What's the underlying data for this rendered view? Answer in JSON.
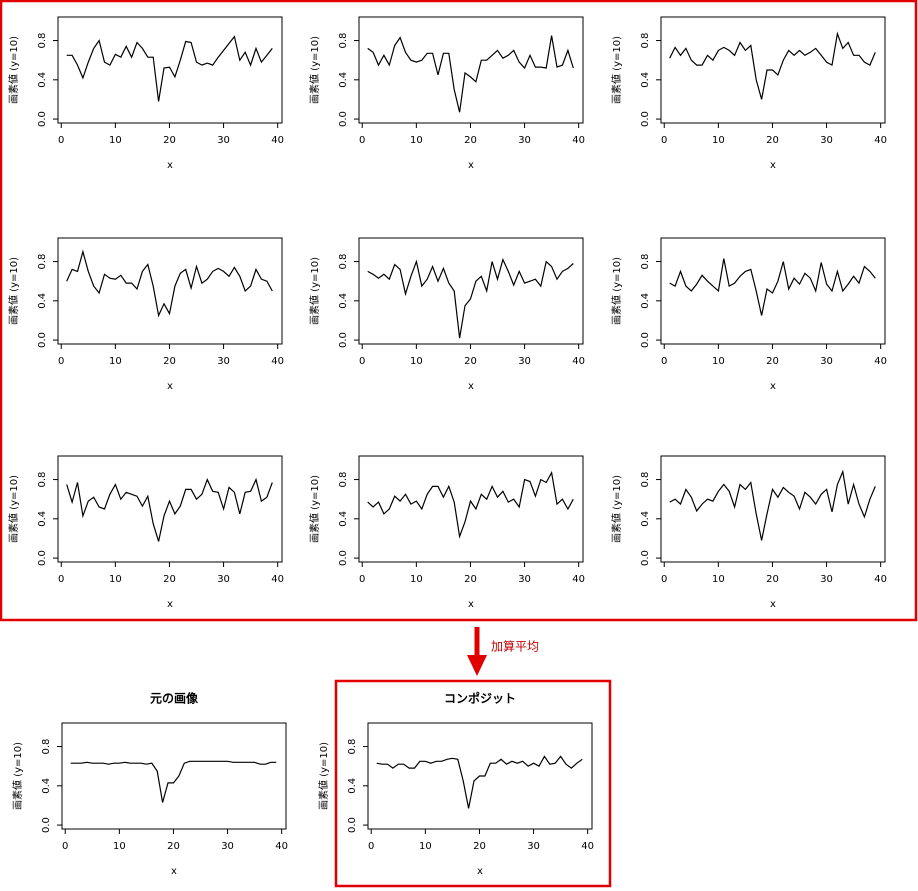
{
  "annotation": "加算平均",
  "chart_data": [
    {
      "type": "line",
      "x_label": "x",
      "y_label": "画素値 (y=10)",
      "color": "#000000",
      "xlim": [
        -0.6,
        40.8
      ],
      "ylim": [
        -0.04,
        1.04
      ],
      "xticks": [
        0,
        10,
        20,
        30,
        40
      ],
      "yticks": [
        {
          "value": 0,
          "label": "0.0"
        },
        {
          "value": 0.4,
          "label": "0.4"
        },
        {
          "value": 0.8,
          "label": "0.8"
        }
      ],
      "x": [
        1,
        2,
        3,
        4,
        5,
        6,
        7,
        8,
        9,
        10,
        11,
        12,
        13,
        14,
        15,
        16,
        17,
        18,
        19,
        20,
        21,
        22,
        23,
        24,
        25,
        26,
        27,
        28,
        29,
        30,
        31,
        32,
        33,
        34,
        35,
        36,
        37,
        38,
        39
      ],
      "values": [
        0.65,
        0.65,
        0.55,
        0.42,
        0.58,
        0.72,
        0.8,
        0.58,
        0.55,
        0.66,
        0.63,
        0.74,
        0.63,
        0.78,
        0.72,
        0.63,
        0.63,
        0.18,
        0.52,
        0.53,
        0.43,
        0.6,
        0.79,
        0.78,
        0.58,
        0.55,
        0.57,
        0.55,
        0.63,
        0.7,
        0.77,
        0.84,
        0.6,
        0.68,
        0.55,
        0.72,
        0.58,
        0.65,
        0.72
      ]
    },
    {
      "type": "line",
      "x_label": "x",
      "y_label": "画素値 (y=10)",
      "color": "#000000",
      "xlim": [
        -0.6,
        40.8
      ],
      "ylim": [
        -0.04,
        1.04
      ],
      "xticks": [
        0,
        10,
        20,
        30,
        40
      ],
      "yticks": [
        {
          "value": 0,
          "label": "0.0"
        },
        {
          "value": 0.4,
          "label": "0.4"
        },
        {
          "value": 0.8,
          "label": "0.8"
        }
      ],
      "x": [
        1,
        2,
        3,
        4,
        5,
        6,
        7,
        8,
        9,
        10,
        11,
        12,
        13,
        14,
        15,
        16,
        17,
        18,
        19,
        20,
        21,
        22,
        23,
        24,
        25,
        26,
        27,
        28,
        29,
        30,
        31,
        32,
        33,
        34,
        35,
        36,
        37,
        38,
        39
      ],
      "values": [
        0.72,
        0.68,
        0.55,
        0.65,
        0.55,
        0.75,
        0.83,
        0.68,
        0.6,
        0.58,
        0.6,
        0.67,
        0.67,
        0.45,
        0.67,
        0.67,
        0.3,
        0.07,
        0.47,
        0.43,
        0.38,
        0.6,
        0.6,
        0.65,
        0.7,
        0.62,
        0.65,
        0.7,
        0.58,
        0.52,
        0.65,
        0.53,
        0.53,
        0.52,
        0.85,
        0.53,
        0.55,
        0.7,
        0.52
      ]
    },
    {
      "type": "line",
      "x_label": "x",
      "y_label": "画素値 (y=10)",
      "color": "#000000",
      "xlim": [
        -0.6,
        40.8
      ],
      "ylim": [
        -0.04,
        1.04
      ],
      "xticks": [
        0,
        10,
        20,
        30,
        40
      ],
      "yticks": [
        {
          "value": 0,
          "label": "0.0"
        },
        {
          "value": 0.4,
          "label": "0.4"
        },
        {
          "value": 0.8,
          "label": "0.8"
        }
      ],
      "x": [
        1,
        2,
        3,
        4,
        5,
        6,
        7,
        8,
        9,
        10,
        11,
        12,
        13,
        14,
        15,
        16,
        17,
        18,
        19,
        20,
        21,
        22,
        23,
        24,
        25,
        26,
        27,
        28,
        29,
        30,
        31,
        32,
        33,
        34,
        35,
        36,
        37,
        38,
        39
      ],
      "values": [
        0.62,
        0.73,
        0.65,
        0.72,
        0.6,
        0.55,
        0.55,
        0.65,
        0.6,
        0.7,
        0.73,
        0.7,
        0.65,
        0.78,
        0.7,
        0.75,
        0.4,
        0.2,
        0.5,
        0.5,
        0.45,
        0.6,
        0.7,
        0.65,
        0.7,
        0.65,
        0.68,
        0.72,
        0.65,
        0.58,
        0.55,
        0.87,
        0.72,
        0.78,
        0.65,
        0.65,
        0.58,
        0.55,
        0.68
      ]
    },
    {
      "type": "line",
      "x_label": "x",
      "y_label": "画素値 (y=10)",
      "color": "#000000",
      "xlim": [
        -0.6,
        40.8
      ],
      "ylim": [
        -0.04,
        1.04
      ],
      "xticks": [
        0,
        10,
        20,
        30,
        40
      ],
      "yticks": [
        {
          "value": 0,
          "label": "0.0"
        },
        {
          "value": 0.4,
          "label": "0.4"
        },
        {
          "value": 0.8,
          "label": "0.8"
        }
      ],
      "x": [
        1,
        2,
        3,
        4,
        5,
        6,
        7,
        8,
        9,
        10,
        11,
        12,
        13,
        14,
        15,
        16,
        17,
        18,
        19,
        20,
        21,
        22,
        23,
        24,
        25,
        26,
        27,
        28,
        29,
        30,
        31,
        32,
        33,
        34,
        35,
        36,
        37,
        38,
        39
      ],
      "values": [
        0.6,
        0.72,
        0.7,
        0.9,
        0.7,
        0.55,
        0.48,
        0.67,
        0.63,
        0.62,
        0.66,
        0.58,
        0.58,
        0.52,
        0.7,
        0.77,
        0.55,
        0.25,
        0.37,
        0.27,
        0.55,
        0.68,
        0.72,
        0.53,
        0.75,
        0.58,
        0.62,
        0.7,
        0.73,
        0.7,
        0.65,
        0.74,
        0.65,
        0.5,
        0.55,
        0.72,
        0.62,
        0.6,
        0.5
      ]
    },
    {
      "type": "line",
      "x_label": "x",
      "y_label": "画素値 (y=10)",
      "color": "#000000",
      "xlim": [
        -0.6,
        40.8
      ],
      "ylim": [
        -0.04,
        1.04
      ],
      "xticks": [
        0,
        10,
        20,
        30,
        40
      ],
      "yticks": [
        {
          "value": 0,
          "label": "0.0"
        },
        {
          "value": 0.4,
          "label": "0.4"
        },
        {
          "value": 0.8,
          "label": "0.8"
        }
      ],
      "x": [
        1,
        2,
        3,
        4,
        5,
        6,
        7,
        8,
        9,
        10,
        11,
        12,
        13,
        14,
        15,
        16,
        17,
        18,
        19,
        20,
        21,
        22,
        23,
        24,
        25,
        26,
        27,
        28,
        29,
        30,
        31,
        32,
        33,
        34,
        35,
        36,
        37,
        38,
        39
      ],
      "values": [
        0.7,
        0.67,
        0.63,
        0.67,
        0.62,
        0.77,
        0.72,
        0.47,
        0.65,
        0.8,
        0.55,
        0.62,
        0.75,
        0.6,
        0.73,
        0.58,
        0.5,
        0.02,
        0.35,
        0.42,
        0.6,
        0.65,
        0.5,
        0.8,
        0.62,
        0.82,
        0.7,
        0.56,
        0.7,
        0.58,
        0.6,
        0.62,
        0.55,
        0.8,
        0.75,
        0.62,
        0.7,
        0.73,
        0.78
      ]
    },
    {
      "type": "line",
      "x_label": "x",
      "y_label": "画素値 (y=10)",
      "color": "#000000",
      "xlim": [
        -0.6,
        40.8
      ],
      "ylim": [
        -0.04,
        1.04
      ],
      "xticks": [
        0,
        10,
        20,
        30,
        40
      ],
      "yticks": [
        {
          "value": 0,
          "label": "0.0"
        },
        {
          "value": 0.4,
          "label": "0.4"
        },
        {
          "value": 0.8,
          "label": "0.8"
        }
      ],
      "x": [
        1,
        2,
        3,
        4,
        5,
        6,
        7,
        8,
        9,
        10,
        11,
        12,
        13,
        14,
        15,
        16,
        17,
        18,
        19,
        20,
        21,
        22,
        23,
        24,
        25,
        26,
        27,
        28,
        29,
        30,
        31,
        32,
        33,
        34,
        35,
        36,
        37,
        38,
        39
      ],
      "values": [
        0.58,
        0.55,
        0.7,
        0.55,
        0.5,
        0.57,
        0.66,
        0.6,
        0.55,
        0.5,
        0.83,
        0.55,
        0.58,
        0.65,
        0.7,
        0.72,
        0.5,
        0.25,
        0.52,
        0.48,
        0.6,
        0.8,
        0.52,
        0.63,
        0.57,
        0.68,
        0.63,
        0.5,
        0.79,
        0.57,
        0.5,
        0.7,
        0.5,
        0.57,
        0.65,
        0.58,
        0.75,
        0.7,
        0.63
      ]
    },
    {
      "type": "line",
      "x_label": "x",
      "y_label": "画素値 (y=10)",
      "color": "#000000",
      "xlim": [
        -0.6,
        40.8
      ],
      "ylim": [
        -0.04,
        1.04
      ],
      "xticks": [
        0,
        10,
        20,
        30,
        40
      ],
      "yticks": [
        {
          "value": 0,
          "label": "0.0"
        },
        {
          "value": 0.4,
          "label": "0.4"
        },
        {
          "value": 0.8,
          "label": "0.8"
        }
      ],
      "x": [
        1,
        2,
        3,
        4,
        5,
        6,
        7,
        8,
        9,
        10,
        11,
        12,
        13,
        14,
        15,
        16,
        17,
        18,
        19,
        20,
        21,
        22,
        23,
        24,
        25,
        26,
        27,
        28,
        29,
        30,
        31,
        32,
        33,
        34,
        35,
        36,
        37,
        38,
        39
      ],
      "values": [
        0.75,
        0.57,
        0.77,
        0.43,
        0.58,
        0.62,
        0.52,
        0.5,
        0.65,
        0.75,
        0.6,
        0.67,
        0.65,
        0.63,
        0.53,
        0.63,
        0.35,
        0.17,
        0.43,
        0.58,
        0.45,
        0.53,
        0.7,
        0.7,
        0.6,
        0.65,
        0.8,
        0.68,
        0.67,
        0.5,
        0.72,
        0.67,
        0.45,
        0.67,
        0.68,
        0.8,
        0.58,
        0.62,
        0.77
      ]
    },
    {
      "type": "line",
      "x_label": "x",
      "y_label": "画素値 (y=10)",
      "color": "#000000",
      "xlim": [
        -0.6,
        40.8
      ],
      "ylim": [
        -0.04,
        1.04
      ],
      "xticks": [
        0,
        10,
        20,
        30,
        40
      ],
      "yticks": [
        {
          "value": 0,
          "label": "0.0"
        },
        {
          "value": 0.4,
          "label": "0.4"
        },
        {
          "value": 0.8,
          "label": "0.8"
        }
      ],
      "x": [
        1,
        2,
        3,
        4,
        5,
        6,
        7,
        8,
        9,
        10,
        11,
        12,
        13,
        14,
        15,
        16,
        17,
        18,
        19,
        20,
        21,
        22,
        23,
        24,
        25,
        26,
        27,
        28,
        29,
        30,
        31,
        32,
        33,
        34,
        35,
        36,
        37,
        38,
        39
      ],
      "values": [
        0.57,
        0.52,
        0.57,
        0.45,
        0.5,
        0.63,
        0.58,
        0.65,
        0.55,
        0.58,
        0.5,
        0.65,
        0.73,
        0.73,
        0.62,
        0.73,
        0.57,
        0.22,
        0.37,
        0.58,
        0.5,
        0.65,
        0.6,
        0.73,
        0.62,
        0.68,
        0.57,
        0.6,
        0.52,
        0.8,
        0.78,
        0.63,
        0.8,
        0.77,
        0.87,
        0.55,
        0.6,
        0.5,
        0.6
      ]
    },
    {
      "type": "line",
      "x_label": "x",
      "y_label": "画素値 (y=10)",
      "color": "#000000",
      "xlim": [
        -0.6,
        40.8
      ],
      "ylim": [
        -0.04,
        1.04
      ],
      "xticks": [
        0,
        10,
        20,
        30,
        40
      ],
      "yticks": [
        {
          "value": 0,
          "label": "0.0"
        },
        {
          "value": 0.4,
          "label": "0.4"
        },
        {
          "value": 0.8,
          "label": "0.8"
        }
      ],
      "x": [
        1,
        2,
        3,
        4,
        5,
        6,
        7,
        8,
        9,
        10,
        11,
        12,
        13,
        14,
        15,
        16,
        17,
        18,
        19,
        20,
        21,
        22,
        23,
        24,
        25,
        26,
        27,
        28,
        29,
        30,
        31,
        32,
        33,
        34,
        35,
        36,
        37,
        38,
        39
      ],
      "values": [
        0.57,
        0.6,
        0.55,
        0.7,
        0.62,
        0.48,
        0.55,
        0.6,
        0.58,
        0.68,
        0.75,
        0.68,
        0.52,
        0.75,
        0.7,
        0.77,
        0.45,
        0.18,
        0.45,
        0.7,
        0.62,
        0.72,
        0.67,
        0.63,
        0.5,
        0.67,
        0.62,
        0.55,
        0.65,
        0.7,
        0.47,
        0.75,
        0.88,
        0.55,
        0.75,
        0.55,
        0.42,
        0.6,
        0.73
      ]
    },
    {
      "type": "line",
      "title": "元の画像",
      "x_label": "x",
      "y_label": "画素値 (y=10)",
      "color": "#000000",
      "xlim": [
        -0.6,
        40.8
      ],
      "ylim": [
        -0.04,
        1.04
      ],
      "xticks": [
        0,
        10,
        20,
        30,
        40
      ],
      "yticks": [
        {
          "value": 0,
          "label": "0.0"
        },
        {
          "value": 0.4,
          "label": "0.4"
        },
        {
          "value": 0.8,
          "label": "0.8"
        }
      ],
      "x": [
        1,
        2,
        3,
        4,
        5,
        6,
        7,
        8,
        9,
        10,
        11,
        12,
        13,
        14,
        15,
        16,
        17,
        18,
        19,
        20,
        21,
        22,
        23,
        24,
        25,
        26,
        27,
        28,
        29,
        30,
        31,
        32,
        33,
        34,
        35,
        36,
        37,
        38,
        39
      ],
      "values": [
        0.63,
        0.63,
        0.63,
        0.64,
        0.63,
        0.63,
        0.63,
        0.62,
        0.63,
        0.63,
        0.64,
        0.63,
        0.63,
        0.63,
        0.62,
        0.63,
        0.55,
        0.23,
        0.43,
        0.43,
        0.5,
        0.63,
        0.65,
        0.65,
        0.65,
        0.65,
        0.65,
        0.65,
        0.65,
        0.65,
        0.64,
        0.64,
        0.64,
        0.64,
        0.64,
        0.62,
        0.62,
        0.64,
        0.64
      ]
    },
    {
      "type": "line",
      "title": "コンポジット",
      "x_label": "x",
      "y_label": "画素値 (y=10)",
      "color": "#000000",
      "xlim": [
        -0.6,
        40.8
      ],
      "ylim": [
        -0.04,
        1.04
      ],
      "xticks": [
        0,
        10,
        20,
        30,
        40
      ],
      "yticks": [
        {
          "value": 0,
          "label": "0.0"
        },
        {
          "value": 0.4,
          "label": "0.4"
        },
        {
          "value": 0.8,
          "label": "0.8"
        }
      ],
      "x": [
        1,
        2,
        3,
        4,
        5,
        6,
        7,
        8,
        9,
        10,
        11,
        12,
        13,
        14,
        15,
        16,
        17,
        18,
        19,
        20,
        21,
        22,
        23,
        24,
        25,
        26,
        27,
        28,
        29,
        30,
        31,
        32,
        33,
        34,
        35,
        36,
        37,
        38,
        39
      ],
      "values": [
        0.63,
        0.62,
        0.62,
        0.58,
        0.62,
        0.62,
        0.58,
        0.58,
        0.65,
        0.65,
        0.63,
        0.65,
        0.65,
        0.67,
        0.68,
        0.67,
        0.45,
        0.17,
        0.45,
        0.5,
        0.5,
        0.63,
        0.63,
        0.67,
        0.62,
        0.65,
        0.63,
        0.65,
        0.6,
        0.63,
        0.6,
        0.7,
        0.62,
        0.63,
        0.7,
        0.62,
        0.58,
        0.63,
        0.67
      ]
    }
  ]
}
